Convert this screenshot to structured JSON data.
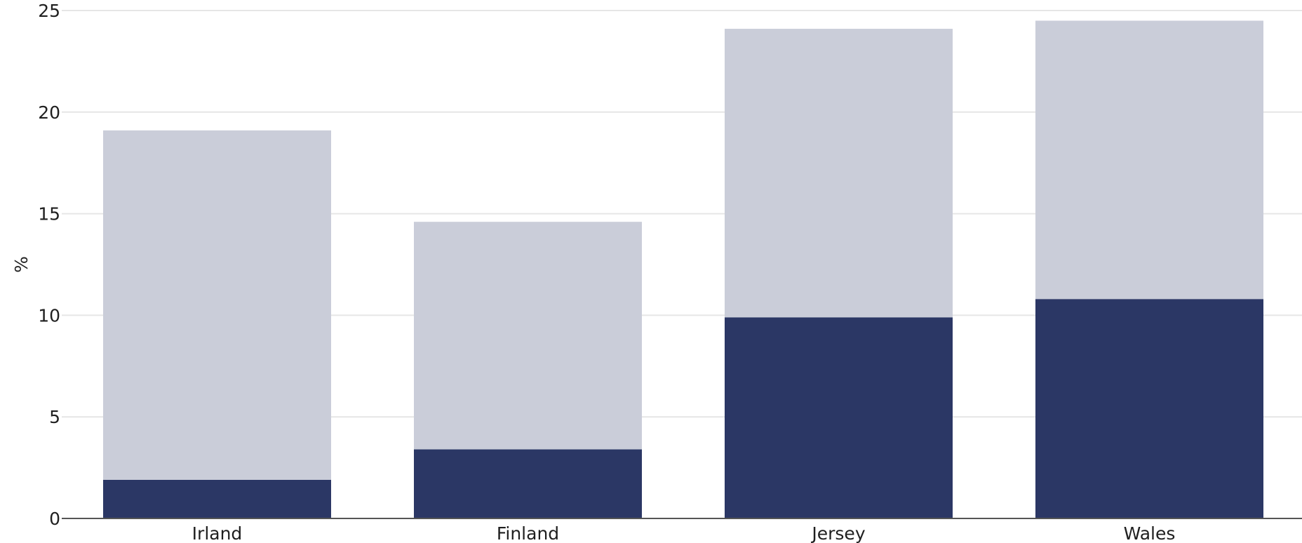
{
  "chart_data": {
    "type": "bar",
    "stacked": true,
    "categories": [
      "Irland",
      "Finland",
      "Jersey",
      "Wales"
    ],
    "series": [
      {
        "values": [
          1.9,
          3.4,
          9.9,
          10.8
        ],
        "color": "#2b3765"
      },
      {
        "values": [
          17.2,
          11.2,
          14.2,
          13.7
        ],
        "color": "#cacdd9"
      }
    ],
    "totals": [
      19.1,
      14.6,
      24.1,
      24.5
    ],
    "ylabel": "%",
    "ylim": [
      0,
      25
    ],
    "yticks": [
      0,
      5,
      10,
      15,
      20,
      25
    ],
    "grid": true,
    "legend": "none"
  }
}
